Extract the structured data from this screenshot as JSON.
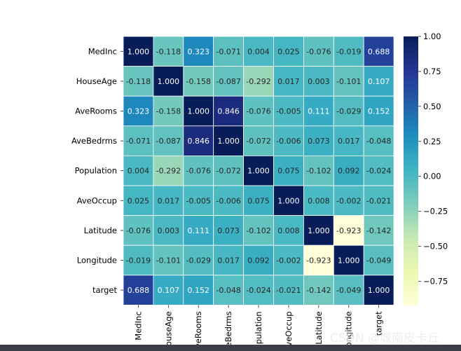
{
  "chart_data": {
    "type": "heatmap",
    "title": "",
    "row_labels": [
      "MedInc",
      "HouseAge",
      "AveRooms",
      "AveBedrms",
      "Population",
      "AveOccup",
      "Latitude",
      "Longitude",
      "target"
    ],
    "col_labels": [
      "MedInc",
      "HouseAge",
      "AveRooms",
      "AveBedrms",
      "Population",
      "AveOccup",
      "Latitude",
      "Longitude",
      "target"
    ],
    "values": [
      [
        1.0,
        -0.118,
        0.323,
        -0.071,
        0.004,
        0.025,
        -0.076,
        -0.019,
        0.688
      ],
      [
        -0.118,
        1.0,
        -0.158,
        -0.087,
        -0.292,
        0.017,
        0.003,
        -0.101,
        0.107
      ],
      [
        0.323,
        -0.158,
        1.0,
        0.846,
        -0.076,
        -0.005,
        0.111,
        -0.029,
        0.152
      ],
      [
        -0.071,
        -0.087,
        0.846,
        1.0,
        -0.072,
        -0.006,
        0.073,
        0.017,
        -0.048
      ],
      [
        0.004,
        -0.292,
        -0.076,
        -0.072,
        1.0,
        0.075,
        -0.102,
        0.092,
        -0.024
      ],
      [
        0.025,
        0.017,
        -0.005,
        -0.006,
        0.075,
        1.0,
        0.008,
        -0.002,
        -0.021
      ],
      [
        -0.076,
        0.003,
        0.111,
        0.073,
        -0.102,
        0.008,
        1.0,
        -0.923,
        -0.142
      ],
      [
        -0.019,
        -0.101,
        -0.029,
        0.017,
        0.092,
        -0.002,
        -0.923,
        1.0,
        -0.049
      ],
      [
        0.688,
        0.107,
        0.152,
        -0.048,
        -0.024,
        -0.021,
        -0.142,
        -0.049,
        1.0
      ]
    ],
    "annotations": [
      [
        "1.000",
        "-0.118",
        "0.323",
        "-0.071",
        "0.004",
        "0.025",
        "-0.076",
        "-0.019",
        "0.688"
      ],
      [
        "-0.118",
        "1.000",
        "-0.158",
        "-0.087",
        "-0.292",
        "0.017",
        "0.003",
        "-0.101",
        "0.107"
      ],
      [
        "0.323",
        "-0.158",
        "1.000",
        "0.846",
        "-0.076",
        "-0.005",
        "0.111",
        "-0.029",
        "0.152"
      ],
      [
        "-0.071",
        "-0.087",
        "0.846",
        "1.000",
        "-0.072",
        "-0.006",
        "0.073",
        "0.017",
        "-0.048"
      ],
      [
        "0.004",
        "-0.292",
        "-0.076",
        "-0.072",
        "1.000",
        "0.075",
        "-0.102",
        "0.092",
        "-0.024"
      ],
      [
        "0.025",
        "0.017",
        "-0.005",
        "-0.006",
        "0.075",
        "1.000",
        "0.008",
        "-0.002",
        "-0.021"
      ],
      [
        "-0.076",
        "0.003",
        "0.111",
        "0.073",
        "-0.102",
        "0.008",
        "1.000",
        "-0.923",
        "-0.142"
      ],
      [
        "-0.019",
        "-0.101",
        "-0.029",
        "0.017",
        "0.092",
        "-0.002",
        "-0.923",
        "1.000",
        "-0.049"
      ],
      [
        "0.688",
        "0.107",
        "0.152",
        "-0.048",
        "-0.024",
        "-0.021",
        "-0.142",
        "-0.049",
        "1.000"
      ]
    ],
    "colormap": "YlGnBu",
    "vmin": -0.923,
    "vmax": 1.0,
    "colorbar_ticks": [
      "1.00",
      "0.75",
      "0.50",
      "0.25",
      "0.00",
      "−0.25",
      "−0.50",
      "−0.75"
    ],
    "colorbar_tick_values": [
      1.0,
      0.75,
      0.5,
      0.25,
      0.0,
      -0.25,
      -0.5,
      -0.75
    ],
    "grid_line_color": "#ffffff",
    "colormap_stops": [
      "#ffffd9",
      "#edf8b1",
      "#c7e9b4",
      "#7fcdbb",
      "#41b6c4",
      "#1d91c0",
      "#225ea8",
      "#253494",
      "#081d58"
    ]
  },
  "watermark": "CSDN @城南皮卡丘"
}
